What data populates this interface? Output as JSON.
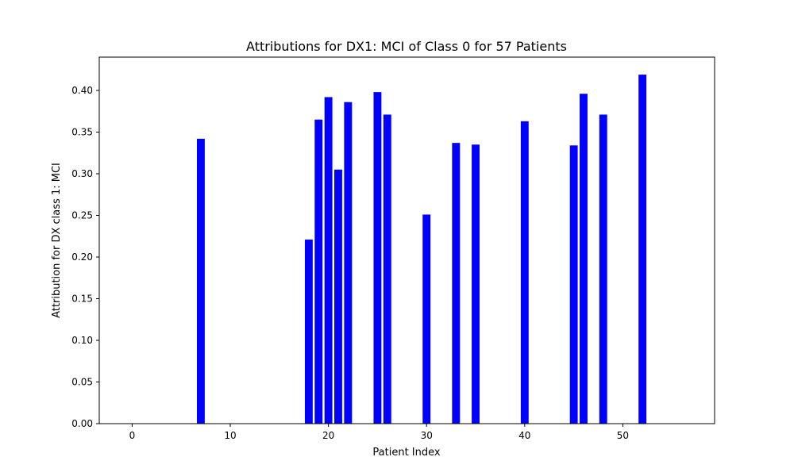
{
  "chart_data": {
    "type": "bar",
    "title": "Attributions for DX1: MCI of Class 0 for 57 Patients",
    "xlabel": "Patient Index",
    "ylabel": "Attribution for DX class 1: MCI",
    "xlim": [
      -3.35,
      59.35
    ],
    "ylim": [
      0,
      0.44
    ],
    "x_ticks": [
      0,
      10,
      20,
      30,
      40,
      50
    ],
    "x_tick_labels": [
      "0",
      "10",
      "20",
      "30",
      "40",
      "50"
    ],
    "y_ticks": [
      0.0,
      0.05,
      0.1,
      0.15,
      0.2,
      0.25,
      0.3,
      0.35,
      0.4
    ],
    "y_tick_labels": [
      "0.00",
      "0.05",
      "0.10",
      "0.15",
      "0.20",
      "0.25",
      "0.30",
      "0.35",
      "0.40"
    ],
    "bar_color": "#0000ff",
    "grid": false,
    "x": [
      7,
      18,
      19,
      20,
      21,
      22,
      25,
      26,
      30,
      33,
      35,
      40,
      45,
      46,
      48,
      52
    ],
    "values": [
      0.342,
      0.221,
      0.365,
      0.392,
      0.305,
      0.386,
      0.398,
      0.371,
      0.251,
      0.337,
      0.335,
      0.363,
      0.334,
      0.396,
      0.371,
      0.419
    ]
  }
}
